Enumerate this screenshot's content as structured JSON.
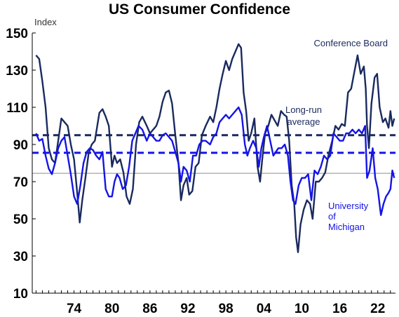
{
  "chart_data": {
    "type": "line",
    "title": "US Consumer Confidence",
    "ylabel": "Index",
    "ylim": [
      10,
      150
    ],
    "xlim": [
      1967.4,
      2024.8
    ],
    "yticks": [
      10,
      30,
      50,
      70,
      90,
      110,
      130,
      150
    ],
    "xticks": [
      {
        "label": "74",
        "year": 1974
      },
      {
        "label": "80",
        "year": 1980
      },
      {
        "label": "86",
        "year": 1986
      },
      {
        "label": "92",
        "year": 1992
      },
      {
        "label": "98",
        "year": 1998
      },
      {
        "label": "04",
        "year": 2004
      },
      {
        "label": "10",
        "year": 2010
      },
      {
        "label": "16",
        "year": 2016
      },
      {
        "label": "22",
        "year": 2022
      }
    ],
    "grid": false,
    "colors": {
      "conference_board": "#1a2a5e",
      "michigan": "#1414e6",
      "reference": "#8c8c8c"
    },
    "series": [
      {
        "name": "Conference Board",
        "color": "#1a2a5e",
        "x": [
          1968.0,
          1968.5,
          1969.0,
          1969.5,
          1970.0,
          1970.5,
          1971.0,
          1971.5,
          1972.0,
          1972.5,
          1973.0,
          1973.5,
          1974.0,
          1974.5,
          1974.9,
          1975.3,
          1975.8,
          1976.3,
          1976.8,
          1977.3,
          1978.0,
          1978.5,
          1979.0,
          1979.5,
          1980.0,
          1980.4,
          1980.8,
          1981.3,
          1981.8,
          1982.3,
          1982.8,
          1983.3,
          1983.8,
          1984.3,
          1984.8,
          1985.5,
          1986.0,
          1986.5,
          1987.0,
          1987.5,
          1988.0,
          1988.5,
          1989.0,
          1989.5,
          1990.0,
          1990.5,
          1990.9,
          1991.3,
          1991.8,
          1992.2,
          1992.7,
          1993.2,
          1993.7,
          1994.2,
          1994.8,
          1995.5,
          1996.0,
          1996.5,
          1997.0,
          1997.5,
          1998.0,
          1998.5,
          1999.0,
          1999.5,
          2000.0,
          2000.4,
          2000.8,
          2001.2,
          2001.6,
          2002.0,
          2002.5,
          2003.0,
          2003.4,
          2003.8,
          2004.2,
          2004.7,
          2005.2,
          2005.7,
          2006.2,
          2006.7,
          2007.2,
          2007.6,
          2008.0,
          2008.4,
          2008.8,
          2009.1,
          2009.4,
          2009.8,
          2010.3,
          2010.8,
          2011.3,
          2011.7,
          2012.2,
          2012.7,
          2013.2,
          2013.7,
          2014.2,
          2014.8,
          2015.3,
          2015.8,
          2016.3,
          2016.8,
          2017.3,
          2017.8,
          2018.3,
          2018.8,
          2019.3,
          2019.8,
          2020.1,
          2020.3,
          2020.6,
          2021.0,
          2021.5,
          2021.9,
          2022.3,
          2022.8,
          2023.2,
          2023.7,
          2024.0,
          2024.3,
          2024.6
        ],
        "values": [
          138,
          136,
          124,
          110,
          88,
          82,
          80,
          92,
          104,
          102,
          100,
          90,
          82,
          64,
          48,
          60,
          72,
          85,
          90,
          92,
          107,
          109,
          105,
          100,
          78,
          84,
          80,
          82,
          75,
          62,
          58,
          66,
          90,
          102,
          105,
          100,
          96,
          98,
          100,
          105,
          113,
          118,
          119,
          112,
          95,
          80,
          60,
          68,
          72,
          63,
          65,
          78,
          80,
          95,
          100,
          105,
          102,
          110,
          120,
          128,
          135,
          130,
          136,
          140,
          144,
          142,
          118,
          108,
          92,
          96,
          104,
          78,
          70,
          84,
          96,
          100,
          106,
          103,
          100,
          108,
          106,
          105,
          92,
          68,
          58,
          40,
          32,
          47,
          55,
          60,
          58,
          50,
          70,
          70,
          72,
          75,
          84,
          92,
          100,
          98,
          101,
          100,
          118,
          120,
          129,
          138,
          128,
          132,
          120,
          100,
          88,
          112,
          126,
          128,
          110,
          102,
          104,
          99,
          108,
          100,
          104
        ]
      },
      {
        "name": "University of Michigan",
        "color": "#1414e6",
        "x": [
          1968.0,
          1968.5,
          1969.0,
          1969.5,
          1970.0,
          1970.5,
          1971.0,
          1971.5,
          1972.0,
          1972.5,
          1973.0,
          1973.5,
          1974.0,
          1974.5,
          1975.0,
          1975.5,
          1976.0,
          1976.5,
          1977.0,
          1977.5,
          1978.0,
          1978.5,
          1979.0,
          1979.5,
          1980.0,
          1980.4,
          1980.8,
          1981.2,
          1981.7,
          1982.2,
          1982.7,
          1983.2,
          1983.7,
          1984.2,
          1984.8,
          1985.5,
          1986.0,
          1986.5,
          1987.0,
          1987.5,
          1988.0,
          1988.5,
          1989.0,
          1989.5,
          1990.0,
          1990.5,
          1990.9,
          1991.3,
          1991.8,
          1992.3,
          1992.8,
          1993.3,
          1993.8,
          1994.3,
          1994.8,
          1995.5,
          1996.0,
          1996.5,
          1997.0,
          1997.5,
          1998.0,
          1998.5,
          1999.0,
          1999.5,
          2000.0,
          2000.5,
          2001.0,
          2001.4,
          2001.8,
          2002.3,
          2002.8,
          2003.2,
          2003.6,
          2004.0,
          2004.5,
          2005.0,
          2005.5,
          2005.9,
          2006.3,
          2006.8,
          2007.3,
          2007.8,
          2008.2,
          2008.6,
          2009.0,
          2009.5,
          2010.0,
          2010.5,
          2011.0,
          2011.5,
          2012.0,
          2012.5,
          2013.0,
          2013.5,
          2014.0,
          2014.5,
          2015.0,
          2015.5,
          2016.0,
          2016.5,
          2017.0,
          2017.5,
          2018.0,
          2018.5,
          2019.0,
          2019.5,
          2020.0,
          2020.3,
          2020.7,
          2021.2,
          2021.6,
          2022.0,
          2022.5,
          2022.9,
          2023.3,
          2023.7,
          2024.0,
          2024.3,
          2024.6
        ],
        "values": [
          96,
          92,
          93,
          84,
          77,
          74,
          80,
          88,
          92,
          94,
          84,
          74,
          62,
          58,
          68,
          80,
          86,
          88,
          87,
          84,
          82,
          86,
          66,
          62,
          62,
          70,
          74,
          72,
          66,
          68,
          78,
          92,
          96,
          100,
          98,
          92,
          96,
          94,
          92,
          92,
          95,
          96,
          94,
          92,
          86,
          80,
          70,
          78,
          76,
          70,
          84,
          84,
          90,
          92,
          92,
          90,
          94,
          96,
          102,
          104,
          106,
          104,
          106,
          108,
          110,
          106,
          90,
          84,
          88,
          92,
          88,
          78,
          88,
          94,
          100,
          92,
          84,
          86,
          88,
          88,
          90,
          84,
          70,
          60,
          58,
          68,
          72,
          72,
          74,
          60,
          76,
          74,
          78,
          84,
          82,
          84,
          96,
          94,
          92,
          92,
          96,
          96,
          98,
          96,
          98,
          96,
          100,
          72,
          76,
          88,
          72,
          66,
          52,
          58,
          62,
          64,
          66,
          76,
          72
        ]
      }
    ],
    "reference_lines": [
      {
        "label": "Conference Board long-run average",
        "y": 95,
        "color": "#1a2a5e",
        "style": "dashed"
      },
      {
        "label": "University of Michigan long-run average",
        "y": 85.5,
        "color": "#1414e6",
        "style": "dashed"
      },
      {
        "label": "reference",
        "y": 74.5,
        "color": "#8c8c8c",
        "style": "solid"
      }
    ],
    "annotations": {
      "conference_board": "Conference Board",
      "long_run": [
        "Long-run",
        "average"
      ],
      "michigan": [
        "University",
        "of",
        "Michigan"
      ]
    }
  }
}
